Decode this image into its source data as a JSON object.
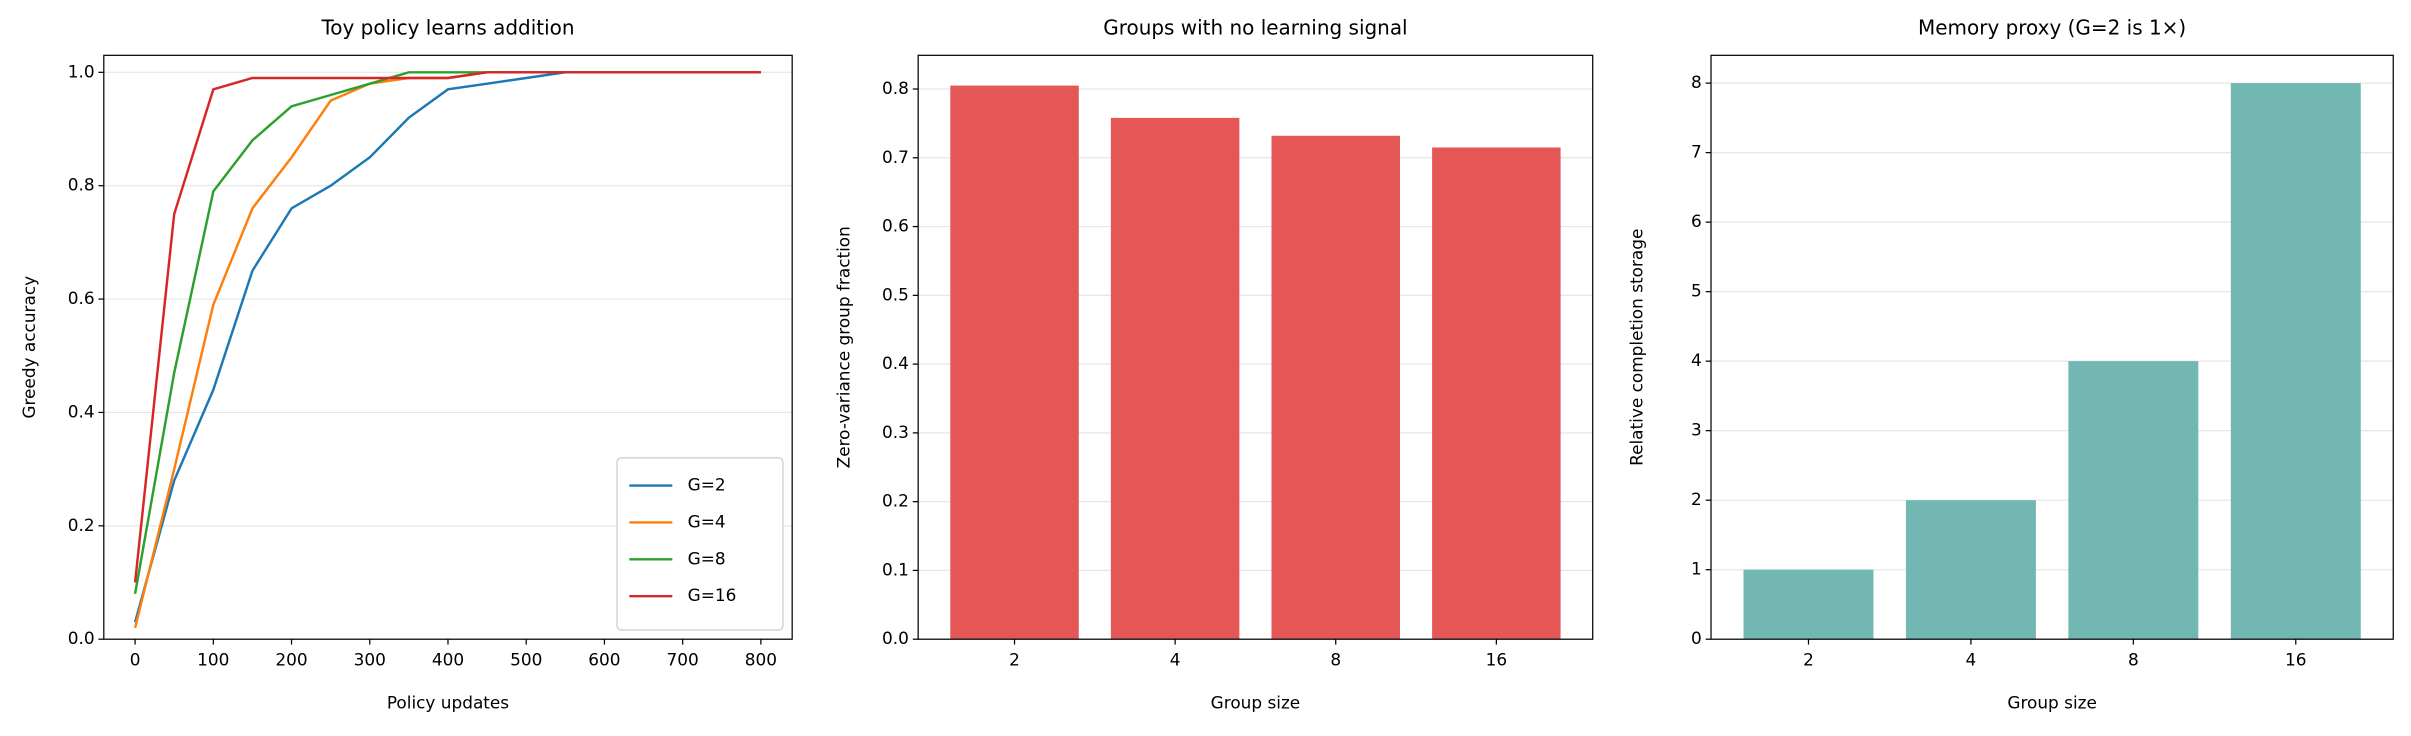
{
  "chart_data": [
    {
      "type": "line",
      "title": "Toy policy learns addition",
      "x_label": "Policy updates",
      "y_label": "Greedy accuracy",
      "x": [
        0,
        50,
        100,
        150,
        200,
        250,
        300,
        350,
        400,
        450,
        500,
        550,
        600,
        650,
        700,
        750,
        800
      ],
      "series": [
        {
          "name": "G=2",
          "color": "#1f77b4",
          "values": [
            0.03,
            0.28,
            0.44,
            0.65,
            0.76,
            0.8,
            0.85,
            0.92,
            0.97,
            0.98,
            0.99,
            1.0,
            1.0,
            1.0,
            1.0,
            1.0,
            1.0
          ]
        },
        {
          "name": "G=4",
          "color": "#ff7f0e",
          "values": [
            0.02,
            0.3,
            0.59,
            0.76,
            0.85,
            0.95,
            0.98,
            0.99,
            0.99,
            1.0,
            1.0,
            1.0,
            1.0,
            1.0,
            1.0,
            1.0,
            1.0
          ]
        },
        {
          "name": "G=8",
          "color": "#2ca02c",
          "values": [
            0.08,
            0.47,
            0.79,
            0.88,
            0.94,
            0.96,
            0.98,
            1.0,
            1.0,
            1.0,
            1.0,
            1.0,
            1.0,
            1.0,
            1.0,
            1.0,
            1.0
          ]
        },
        {
          "name": "G=16",
          "color": "#d62728",
          "values": [
            0.1,
            0.75,
            0.97,
            0.99,
            0.99,
            0.99,
            0.99,
            0.99,
            0.99,
            1.0,
            1.0,
            1.0,
            1.0,
            1.0,
            1.0,
            1.0,
            1.0
          ]
        }
      ],
      "xlim": [
        -40,
        840
      ],
      "xticks": [
        0,
        100,
        200,
        300,
        400,
        500,
        600,
        700,
        800
      ],
      "ylim": [
        0,
        1.03
      ],
      "yticks": [
        {
          "value": 0,
          "label": "0.0"
        },
        0.2,
        0.4,
        0.6,
        0.8,
        {
          "value": 1,
          "label": "1.0"
        }
      ],
      "grid": true,
      "legend": "lower-right"
    },
    {
      "type": "bar",
      "title": "Groups with no learning signal",
      "x_label": "Group size",
      "y_label": "Zero-variance group fraction",
      "categories": [
        "2",
        "4",
        "8",
        "16"
      ],
      "values": [
        0.805,
        0.758,
        0.732,
        0.715
      ],
      "color": "#e45756",
      "ylim": [
        0,
        0.849
      ],
      "yticks": [
        {
          "value": 0,
          "label": "0.0"
        },
        0.1,
        0.2,
        0.3,
        0.4,
        0.5,
        0.6,
        0.7,
        0.8
      ],
      "grid": true
    },
    {
      "type": "bar",
      "title": "Memory proxy (G=2 is 1×)",
      "x_label": "Group size",
      "y_label": "Relative completion storage",
      "categories": [
        "2",
        "4",
        "8",
        "16"
      ],
      "values": [
        1,
        2,
        4,
        8
      ],
      "color": "#72b7b2",
      "ylim": [
        0,
        8.4
      ],
      "yticks": [
        0,
        1,
        2,
        3,
        4,
        5,
        6,
        7,
        8
      ],
      "grid": true
    }
  ]
}
